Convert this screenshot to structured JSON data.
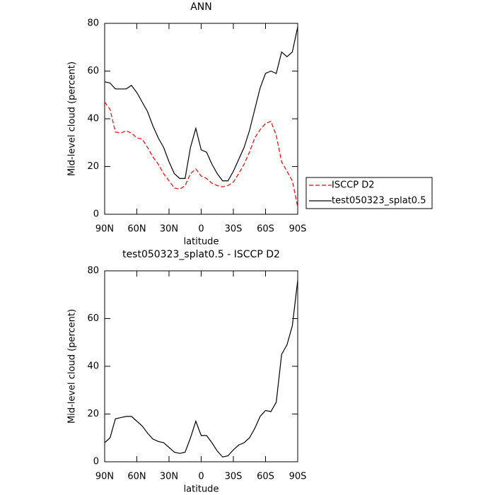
{
  "chart_data": [
    {
      "type": "line",
      "title": "ANN",
      "xlabel": "latitude",
      "ylabel": "Mid-level cloud (percent)",
      "x": [
        90,
        85,
        80,
        75,
        70,
        65,
        60,
        55,
        50,
        45,
        40,
        35,
        30,
        25,
        20,
        15,
        10,
        5,
        0,
        -5,
        -10,
        -15,
        -20,
        -25,
        -30,
        -35,
        -40,
        -45,
        -50,
        -55,
        -60,
        -65,
        -70,
        -75,
        -80,
        -85,
        -90
      ],
      "series": [
        {
          "name": "ISCCP D2",
          "color": "#ff0000",
          "dash": true,
          "values": [
            47,
            44,
            34.5,
            34,
            35,
            34,
            32,
            31.5,
            28,
            24,
            21,
            17,
            14,
            11,
            10.5,
            12,
            17,
            19,
            16,
            15,
            13,
            12,
            11.5,
            12,
            13.5,
            17,
            21,
            26,
            32,
            35.5,
            38,
            39,
            33,
            22,
            18,
            14,
            3
          ]
        },
        {
          "name": "test050323_splat0.5",
          "color": "#000000",
          "dash": false,
          "values": [
            55.5,
            55,
            52.5,
            52.5,
            52.5,
            54,
            51,
            47,
            43,
            37,
            32,
            28,
            22,
            17,
            15,
            15,
            28,
            36,
            27,
            26,
            21,
            17,
            14,
            14,
            18,
            23,
            28,
            35,
            44,
            53,
            59,
            60,
            59,
            68,
            66,
            68,
            78.5
          ]
        }
      ],
      "xlim": [
        90,
        -90
      ],
      "xticks": [
        {
          "value": 90,
          "label": "90N"
        },
        {
          "value": 60,
          "label": "60N"
        },
        {
          "value": 30,
          "label": "30N"
        },
        0,
        {
          "value": -30,
          "label": "30S"
        },
        {
          "value": -60,
          "label": "60S"
        },
        {
          "value": -90,
          "label": "90S"
        }
      ],
      "ylim": [
        0,
        80
      ],
      "yticks": [
        0,
        20,
        40,
        60,
        80
      ],
      "legend": "right"
    },
    {
      "type": "line",
      "title": "test050323_splat0.5 - ISCCP D2",
      "xlabel": "latitude",
      "ylabel": "Mid-level cloud (percent)",
      "x": [
        90,
        85,
        80,
        75,
        70,
        65,
        60,
        55,
        50,
        45,
        40,
        35,
        30,
        25,
        20,
        15,
        10,
        5,
        0,
        -5,
        -10,
        -15,
        -20,
        -25,
        -30,
        -35,
        -40,
        -45,
        -50,
        -55,
        -60,
        -65,
        -70,
        -75,
        -80,
        -85,
        -90
      ],
      "series": [
        {
          "color": "#000000",
          "dash": false,
          "values": [
            8,
            10,
            18,
            18.5,
            19,
            19,
            17,
            15,
            12,
            9.5,
            8.5,
            8,
            6,
            4,
            3.5,
            4,
            10,
            17,
            11,
            11,
            8,
            4.5,
            2,
            2.5,
            5,
            7,
            8,
            10,
            14,
            19,
            21.5,
            21,
            25,
            45,
            49,
            57,
            76
          ]
        }
      ],
      "xlim": [
        90,
        -90
      ],
      "xticks": [
        {
          "value": 90,
          "label": "90N"
        },
        {
          "value": 60,
          "label": "60N"
        },
        {
          "value": 30,
          "label": "30N"
        },
        0,
        {
          "value": -30,
          "label": "30S"
        },
        {
          "value": -60,
          "label": "60S"
        },
        {
          "value": -90,
          "label": "90S"
        }
      ],
      "ylim": [
        0,
        80
      ],
      "yticks": [
        0,
        20,
        40,
        60,
        80
      ]
    }
  ]
}
